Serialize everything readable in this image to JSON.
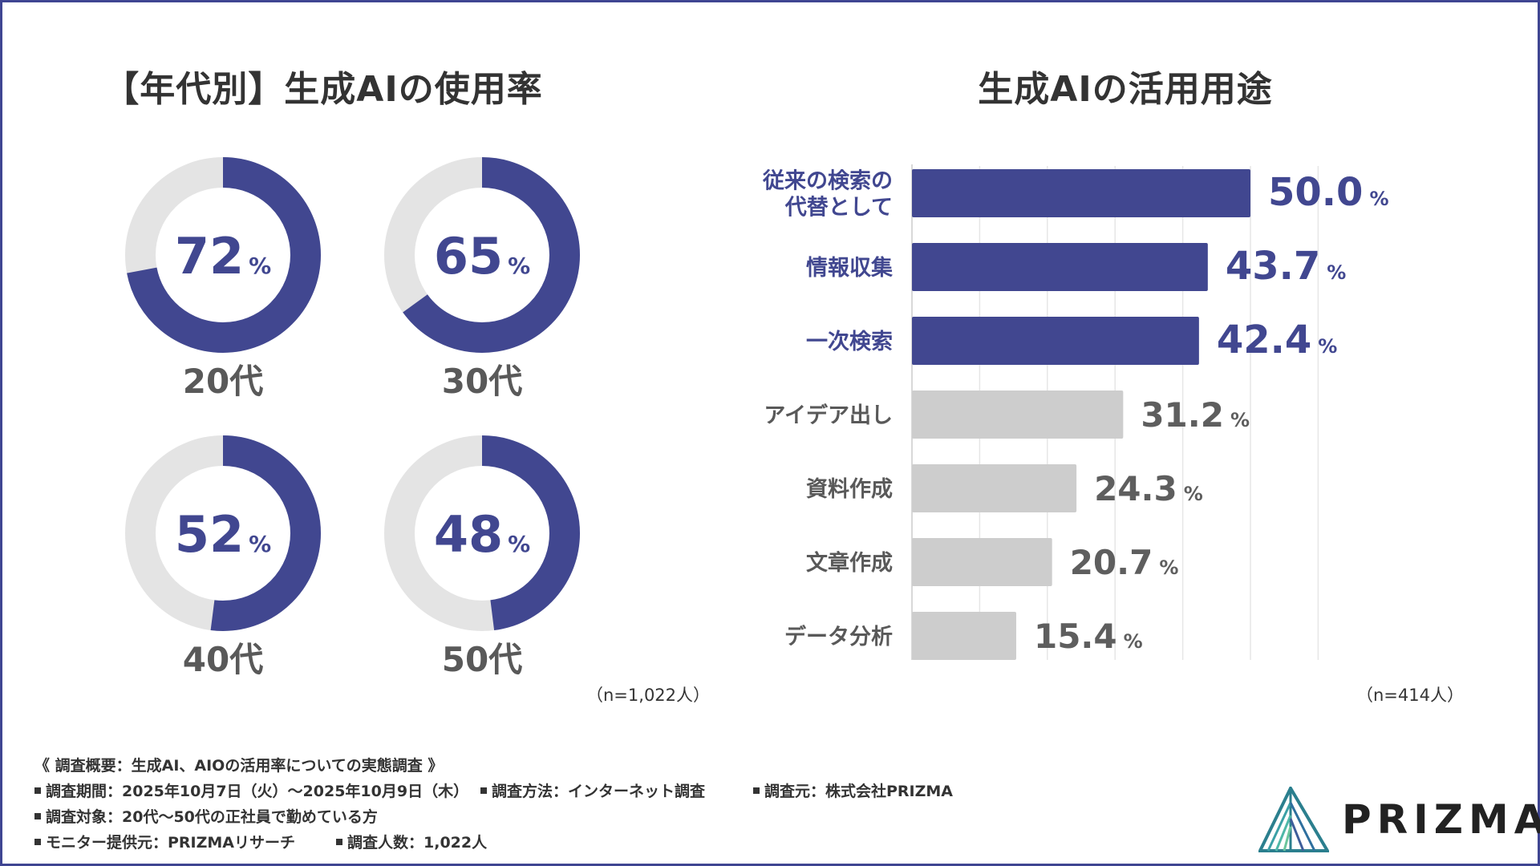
{
  "colors": {
    "accent": "#414790",
    "track": "#e4e4e4",
    "bar_gray": "#cdcdcd",
    "value_gray": "#5e5e5e",
    "label_gray": "#595959",
    "grid": "#e6e6e6"
  },
  "left_chart": {
    "title": "【年代別】生成AIの使用率",
    "sample_note": "（n=1,022人）"
  },
  "right_chart": {
    "title": "生成AIの活用用途",
    "sample_note": "（n=414人）"
  },
  "chart_data": [
    {
      "type": "pie",
      "subtype": "donut",
      "title": "【年代別】生成AIの使用率",
      "unit": "%",
      "categories": [
        "20代",
        "30代",
        "40代",
        "50代"
      ],
      "values": [
        72,
        65,
        52,
        48
      ]
    },
    {
      "type": "bar",
      "orientation": "horizontal",
      "title": "生成AIの活用用途",
      "unit": "%",
      "categories": [
        "従来の検索の代替として",
        "情報収集",
        "一次検索",
        "アイデア出し",
        "資料作成",
        "文章作成",
        "データ分析"
      ],
      "category_lines": [
        [
          "従来の検索の",
          "代替として"
        ],
        [
          "情報収集"
        ],
        [
          "一次検索"
        ],
        [
          "アイデア出し"
        ],
        [
          "資料作成"
        ],
        [
          "文章作成"
        ],
        [
          "データ分析"
        ]
      ],
      "values": [
        50.0,
        43.7,
        42.4,
        31.2,
        24.3,
        20.7,
        15.4
      ],
      "value_labels": [
        "50.0",
        "43.7",
        "42.4",
        "31.2",
        "24.3",
        "20.7",
        "15.4"
      ],
      "highlighted_top_n": 3,
      "xlim": [
        0,
        60
      ],
      "grid": true
    }
  ],
  "survey": {
    "heading": "《 調査概要：生成AI、AIOの活用率についての実態調査 》",
    "period": "調査期間：2025年10月7日（火）〜2025年10月9日（木）",
    "method": "調査方法：インターネット調査",
    "conductor": "調査元：株式会社PRIZMA",
    "target": "調査対象：20代〜50代の正社員で勤めている方",
    "provider": "モニター提供元：PRIZMAリサーチ",
    "respondents": "調査人数：1,022人"
  },
  "logo": {
    "text": "PRIZMA",
    "icon": "prism-logo-icon"
  }
}
